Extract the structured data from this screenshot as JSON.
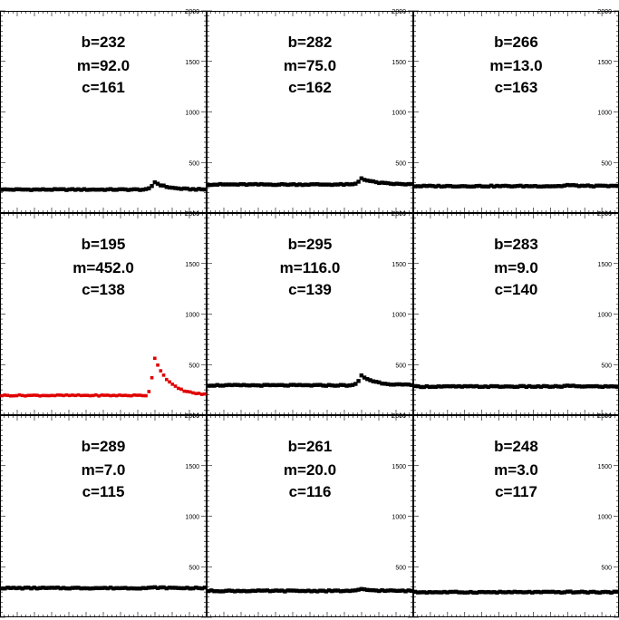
{
  "chart_data": {
    "type": "scatter",
    "layout": "3x3 grid of small-multiple panels",
    "ylim": [
      0,
      2000
    ],
    "yticks": [
      500,
      1000,
      1500,
      2000
    ],
    "ytick_labels": [
      "500",
      "1000",
      "1500",
      "2000"
    ],
    "grid": false,
    "colors": {
      "normal": "#000000",
      "highlight": "#e00000",
      "axis": "#000000"
    },
    "panels": [
      {
        "b": "b=232",
        "m": "m=92.0",
        "c": "c=161",
        "color": "#000000",
        "baseline": 232,
        "peak": 324,
        "peak_pos": 0.74,
        "decay": 0.06
      },
      {
        "b": "b=282",
        "m": "m=75.0",
        "c": "c=162",
        "color": "#000000",
        "baseline": 282,
        "peak": 357,
        "peak_pos": 0.74,
        "decay": 0.07
      },
      {
        "b": "b=266",
        "m": "m=13.0",
        "c": "c=163",
        "color": "#000000",
        "baseline": 266,
        "peak": 279,
        "peak_pos": 0.74,
        "decay": 0.06
      },
      {
        "b": "b=195",
        "m": "m=452.0",
        "c": "c=138",
        "color": "#e00000",
        "baseline": 195,
        "peak": 647,
        "peak_pos": 0.74,
        "decay": 0.07
      },
      {
        "b": "b=295",
        "m": "m=116.0",
        "c": "c=139",
        "color": "#000000",
        "baseline": 295,
        "peak": 411,
        "peak_pos": 0.74,
        "decay": 0.07
      },
      {
        "b": "b=283",
        "m": "m=9.0",
        "c": "c=140",
        "color": "#000000",
        "baseline": 283,
        "peak": 292,
        "peak_pos": 0.74,
        "decay": 0.06
      },
      {
        "b": "b=289",
        "m": "m=7.0",
        "c": "c=115",
        "color": "#000000",
        "baseline": 289,
        "peak": 296,
        "peak_pos": 0.74,
        "decay": 0.06
      },
      {
        "b": "b=261",
        "m": "m=20.0",
        "c": "c=116",
        "color": "#000000",
        "baseline": 261,
        "peak": 281,
        "peak_pos": 0.74,
        "decay": 0.06
      },
      {
        "b": "b=248",
        "m": "m=3.0",
        "c": "c=117",
        "color": "#000000",
        "baseline": 248,
        "peak": 251,
        "peak_pos": 0.74,
        "decay": 0.06
      }
    ]
  }
}
